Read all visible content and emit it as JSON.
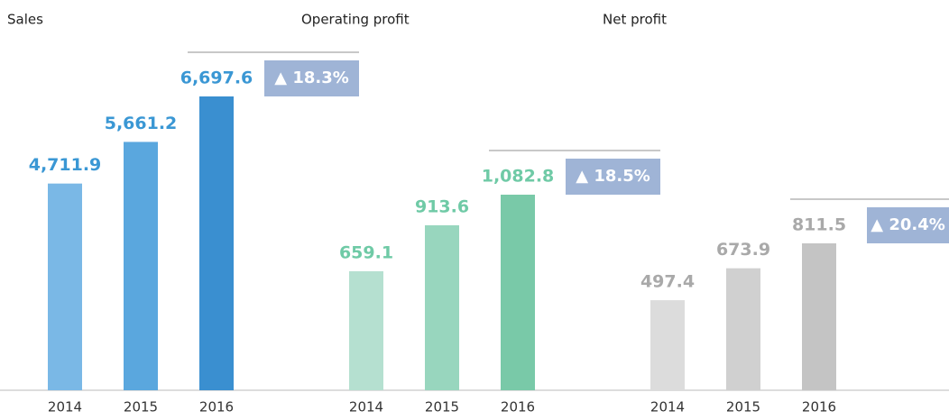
{
  "chart_data": [
    {
      "type": "bar",
      "title": "Sales",
      "categories": [
        "2014",
        "2015",
        "2016"
      ],
      "values": [
        4711.9,
        5661.2,
        6697.6
      ],
      "value_labels": [
        "4,711.9",
        "5,661.2",
        "6,697.6"
      ],
      "colors": [
        "#7ab8e6",
        "#5aa7de",
        "#3a8fd0"
      ],
      "label_color": "#3a97d4",
      "annotation": "▲ 18.3%"
    },
    {
      "type": "bar",
      "title": "Operating profit",
      "categories": [
        "2014",
        "2015",
        "2016"
      ],
      "values": [
        659.1,
        913.6,
        1082.8
      ],
      "value_labels": [
        "659.1",
        "913.6",
        "1,082.8"
      ],
      "colors": [
        "#b5e0d0",
        "#98d6be",
        "#79c9a8"
      ],
      "label_color": "#6fcaa6",
      "annotation": "▲ 18.5%"
    },
    {
      "type": "bar",
      "title": "Net profit",
      "categories": [
        "2014",
        "2015",
        "2016"
      ],
      "values": [
        497.4,
        673.9,
        811.5
      ],
      "value_labels": [
        "497.4",
        "673.9",
        "811.5"
      ],
      "colors": [
        "#dcdcdc",
        "#d0d0d0",
        "#c4c4c4"
      ],
      "label_color": "#a9a9a9",
      "annotation": "▲ 20.4%"
    }
  ]
}
